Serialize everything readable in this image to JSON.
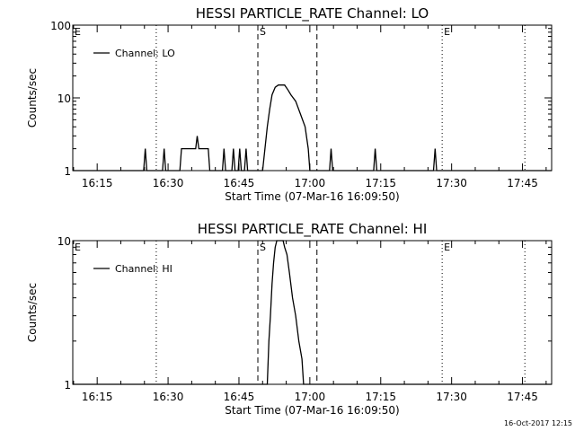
{
  "chart_data": [
    {
      "type": "line",
      "title": "HESSI PARTICLE_RATE Channel: LO",
      "xlabel": "Start Time (07-Mar-16 16:09:50)",
      "ylabel": "Counts/sec",
      "x_ticks": [
        "16:15",
        "16:30",
        "16:45",
        "17:00",
        "17:15",
        "17:30",
        "17:45"
      ],
      "y_ticks": [
        "1",
        "10",
        "100"
      ],
      "yscale": "log",
      "ylim": [
        1,
        100
      ],
      "xlim": [
        "16:09:50",
        "17:51:10"
      ],
      "grid": false,
      "legend_position": "top-left",
      "series": [
        {
          "name": "Channel: LO",
          "points": [
            [
              "16:09:50",
              1
            ],
            [
              "16:24:50",
              1
            ],
            [
              "16:25:10",
              2
            ],
            [
              "16:25:30",
              1
            ],
            [
              "16:28:50",
              1
            ],
            [
              "16:29:10",
              2
            ],
            [
              "16:29:30",
              1
            ],
            [
              "16:32:30",
              1
            ],
            [
              "16:32:50",
              2
            ],
            [
              "16:35:50",
              2
            ],
            [
              "16:36:10",
              3
            ],
            [
              "16:36:30",
              2
            ],
            [
              "16:38:30",
              2
            ],
            [
              "16:38:50",
              1
            ],
            [
              "16:41:30",
              1
            ],
            [
              "16:41:50",
              2
            ],
            [
              "16:42:10",
              1
            ],
            [
              "16:43:30",
              1
            ],
            [
              "16:43:50",
              2
            ],
            [
              "16:44:10",
              1
            ],
            [
              "16:44:50",
              1
            ],
            [
              "16:45:10",
              2
            ],
            [
              "16:45:30",
              1
            ],
            [
              "16:46:10",
              1
            ],
            [
              "16:46:30",
              2
            ],
            [
              "16:46:50",
              1
            ],
            [
              "16:50:00",
              1
            ],
            [
              "16:50:30",
              2
            ],
            [
              "16:51:00",
              4
            ],
            [
              "16:51:30",
              7
            ],
            [
              "16:52:00",
              11
            ],
            [
              "16:52:40",
              14
            ],
            [
              "16:53:20",
              15
            ],
            [
              "16:54:40",
              15
            ],
            [
              "16:55:20",
              13
            ],
            [
              "16:56:00",
              11
            ],
            [
              "16:57:00",
              9
            ],
            [
              "16:58:00",
              6
            ],
            [
              "16:59:00",
              4
            ],
            [
              "16:59:40",
              2
            ],
            [
              "17:00:00",
              1
            ],
            [
              "17:04:10",
              1
            ],
            [
              "17:04:30",
              2
            ],
            [
              "17:04:50",
              1
            ],
            [
              "17:13:30",
              1
            ],
            [
              "17:13:50",
              2
            ],
            [
              "17:14:10",
              1
            ],
            [
              "17:26:10",
              1
            ],
            [
              "17:26:30",
              2
            ],
            [
              "17:26:50",
              1
            ],
            [
              "17:51:10",
              1
            ]
          ]
        }
      ],
      "markers": [
        {
          "label": "E",
          "x": "16:09:50",
          "style": "dotted"
        },
        {
          "label": "",
          "x": "16:27:30",
          "style": "dotted"
        },
        {
          "label": "S",
          "x": "16:49:00",
          "style": "dashed"
        },
        {
          "label": "",
          "x": "17:01:30",
          "style": "dashed"
        },
        {
          "label": "E",
          "x": "17:28:00",
          "style": "dotted"
        },
        {
          "label": "",
          "x": "17:45:30",
          "style": "dotted"
        }
      ]
    },
    {
      "type": "line",
      "title": "HESSI PARTICLE_RATE Channel: HI",
      "xlabel": "Start Time (07-Mar-16 16:09:50)",
      "ylabel": "Counts/sec",
      "x_ticks": [
        "16:15",
        "16:30",
        "16:45",
        "17:00",
        "17:15",
        "17:30",
        "17:45"
      ],
      "y_ticks": [
        "1",
        "10"
      ],
      "yscale": "log",
      "ylim": [
        1,
        10
      ],
      "xlim": [
        "16:09:50",
        "17:51:10"
      ],
      "grid": false,
      "legend_position": "top-left",
      "series": [
        {
          "name": "Channel: HI",
          "points": [
            [
              "16:09:50",
              1
            ],
            [
              "16:51:00",
              1
            ],
            [
              "16:51:20",
              2
            ],
            [
              "16:51:40",
              3
            ],
            [
              "16:52:00",
              5
            ],
            [
              "16:52:20",
              7
            ],
            [
              "16:52:40",
              9
            ],
            [
              "16:53:00",
              10
            ],
            [
              "16:54:20",
              10
            ],
            [
              "16:54:40",
              9
            ],
            [
              "16:55:10",
              8
            ],
            [
              "16:55:40",
              6
            ],
            [
              "16:56:20",
              4
            ],
            [
              "16:57:00",
              3
            ],
            [
              "16:57:40",
              2
            ],
            [
              "16:58:20",
              1.5
            ],
            [
              "16:58:40",
              1
            ],
            [
              "17:51:10",
              1
            ]
          ]
        }
      ],
      "markers": [
        {
          "label": "E",
          "x": "16:09:50",
          "style": "dotted"
        },
        {
          "label": "",
          "x": "16:27:30",
          "style": "dotted"
        },
        {
          "label": "S",
          "x": "16:49:00",
          "style": "dashed"
        },
        {
          "label": "",
          "x": "17:01:30",
          "style": "dashed"
        },
        {
          "label": "E",
          "x": "17:28:00",
          "style": "dotted"
        },
        {
          "label": "",
          "x": "17:45:30",
          "style": "dotted"
        }
      ]
    }
  ],
  "footer": {
    "timestamp": "16-Oct-2017 12:15"
  }
}
